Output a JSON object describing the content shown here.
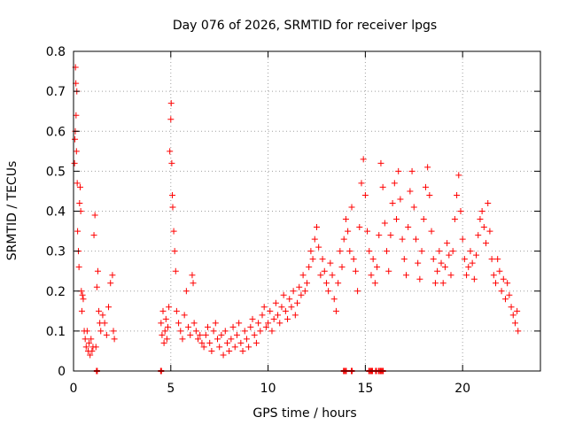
{
  "chart_data": {
    "type": "scatter",
    "title": "Day 076 of 2026, SRMTID for receiver lpgs",
    "xlabel": "GPS time / hours",
    "ylabel": "SRMTID / TECUs",
    "xlim": [
      0,
      24
    ],
    "ylim": [
      0,
      0.8
    ],
    "xticks": [
      0,
      5,
      10,
      15,
      20
    ],
    "yticks": [
      0,
      0.1,
      0.2,
      0.3,
      0.4,
      0.5,
      0.6,
      0.7,
      0.8
    ],
    "xtick_labels": [
      "0",
      "5",
      "10",
      "15",
      "20"
    ],
    "ytick_labels": [
      "0",
      "0.1",
      "0.2",
      "0.3",
      "0.4",
      "0.5",
      "0.6",
      "0.7",
      "0.8"
    ],
    "grid": true,
    "marker": "plus",
    "color": "#ff0000",
    "series": [
      {
        "name": "SRMTID",
        "points": [
          [
            0.05,
            0.52
          ],
          [
            0.07,
            0.58
          ],
          [
            0.09,
            0.6
          ],
          [
            0.1,
            0.76
          ],
          [
            0.12,
            0.72
          ],
          [
            0.13,
            0.64
          ],
          [
            0.15,
            0.55
          ],
          [
            0.17,
            0.7
          ],
          [
            0.19,
            0.47
          ],
          [
            0.21,
            0.35
          ],
          [
            0.25,
            0.3
          ],
          [
            0.28,
            0.26
          ],
          [
            0.31,
            0.42
          ],
          [
            0.34,
            0.46
          ],
          [
            0.37,
            0.4
          ],
          [
            0.4,
            0.2
          ],
          [
            0.43,
            0.15
          ],
          [
            0.46,
            0.19
          ],
          [
            0.5,
            0.18
          ],
          [
            0.55,
            0.1
          ],
          [
            0.6,
            0.08
          ],
          [
            0.65,
            0.06
          ],
          [
            0.7,
            0.1
          ],
          [
            0.75,
            0.05
          ],
          [
            0.8,
            0.07
          ],
          [
            0.85,
            0.04
          ],
          [
            0.9,
            0.08
          ],
          [
            0.95,
            0.05
          ],
          [
            1.0,
            0.06
          ],
          [
            1.05,
            0.34
          ],
          [
            1.1,
            0.39
          ],
          [
            1.15,
            0.06
          ],
          [
            1.2,
            0.21
          ],
          [
            1.25,
            0.25
          ],
          [
            1.3,
            0.15
          ],
          [
            1.35,
            0.12
          ],
          [
            1.4,
            0.1
          ],
          [
            1.5,
            0.14
          ],
          [
            1.6,
            0.12
          ],
          [
            1.7,
            0.09
          ],
          [
            1.8,
            0.16
          ],
          [
            1.9,
            0.22
          ],
          [
            2.0,
            0.24
          ],
          [
            2.05,
            0.1
          ],
          [
            2.1,
            0.08
          ],
          [
            4.5,
            0.12
          ],
          [
            4.55,
            0.09
          ],
          [
            4.6,
            0.15
          ],
          [
            4.65,
            0.07
          ],
          [
            4.7,
            0.1
          ],
          [
            4.75,
            0.13
          ],
          [
            4.8,
            0.08
          ],
          [
            4.85,
            0.11
          ],
          [
            4.9,
            0.16
          ],
          [
            4.95,
            0.55
          ],
          [
            5.0,
            0.63
          ],
          [
            5.02,
            0.67
          ],
          [
            5.05,
            0.52
          ],
          [
            5.08,
            0.44
          ],
          [
            5.1,
            0.41
          ],
          [
            5.15,
            0.35
          ],
          [
            5.2,
            0.3
          ],
          [
            5.25,
            0.25
          ],
          [
            5.3,
            0.15
          ],
          [
            5.4,
            0.12
          ],
          [
            5.5,
            0.1
          ],
          [
            5.6,
            0.08
          ],
          [
            5.7,
            0.14
          ],
          [
            5.8,
            0.2
          ],
          [
            5.9,
            0.11
          ],
          [
            6.0,
            0.09
          ],
          [
            6.1,
            0.24
          ],
          [
            6.15,
            0.22
          ],
          [
            6.2,
            0.12
          ],
          [
            6.3,
            0.1
          ],
          [
            6.4,
            0.08
          ],
          [
            6.5,
            0.09
          ],
          [
            6.6,
            0.07
          ],
          [
            6.7,
            0.06
          ],
          [
            6.8,
            0.09
          ],
          [
            6.9,
            0.11
          ],
          [
            7.0,
            0.07
          ],
          [
            7.1,
            0.05
          ],
          [
            7.2,
            0.1
          ],
          [
            7.3,
            0.12
          ],
          [
            7.4,
            0.08
          ],
          [
            7.5,
            0.06
          ],
          [
            7.6,
            0.09
          ],
          [
            7.7,
            0.04
          ],
          [
            7.8,
            0.1
          ],
          [
            7.9,
            0.07
          ],
          [
            8.0,
            0.05
          ],
          [
            8.1,
            0.08
          ],
          [
            8.2,
            0.11
          ],
          [
            8.3,
            0.06
          ],
          [
            8.4,
            0.09
          ],
          [
            8.5,
            0.12
          ],
          [
            8.6,
            0.07
          ],
          [
            8.7,
            0.05
          ],
          [
            8.8,
            0.1
          ],
          [
            8.9,
            0.08
          ],
          [
            9.0,
            0.06
          ],
          [
            9.1,
            0.11
          ],
          [
            9.2,
            0.13
          ],
          [
            9.3,
            0.09
          ],
          [
            9.4,
            0.07
          ],
          [
            9.5,
            0.12
          ],
          [
            9.6,
            0.1
          ],
          [
            9.7,
            0.14
          ],
          [
            9.8,
            0.16
          ],
          [
            9.9,
            0.11
          ],
          [
            10.0,
            0.12
          ],
          [
            10.1,
            0.15
          ],
          [
            10.2,
            0.1
          ],
          [
            10.3,
            0.13
          ],
          [
            10.4,
            0.17
          ],
          [
            10.5,
            0.14
          ],
          [
            10.6,
            0.12
          ],
          [
            10.7,
            0.16
          ],
          [
            10.8,
            0.19
          ],
          [
            10.9,
            0.15
          ],
          [
            11.0,
            0.13
          ],
          [
            11.1,
            0.18
          ],
          [
            11.2,
            0.16
          ],
          [
            11.3,
            0.2
          ],
          [
            11.4,
            0.14
          ],
          [
            11.5,
            0.17
          ],
          [
            11.6,
            0.21
          ],
          [
            11.7,
            0.19
          ],
          [
            11.8,
            0.24
          ],
          [
            11.9,
            0.2
          ],
          [
            12.0,
            0.22
          ],
          [
            12.1,
            0.26
          ],
          [
            12.2,
            0.3
          ],
          [
            12.3,
            0.28
          ],
          [
            12.4,
            0.33
          ],
          [
            12.5,
            0.36
          ],
          [
            12.6,
            0.31
          ],
          [
            12.7,
            0.24
          ],
          [
            12.8,
            0.28
          ],
          [
            12.9,
            0.25
          ],
          [
            13.0,
            0.22
          ],
          [
            13.1,
            0.2
          ],
          [
            13.2,
            0.27
          ],
          [
            13.3,
            0.24
          ],
          [
            13.4,
            0.18
          ],
          [
            13.5,
            0.15
          ],
          [
            13.6,
            0.22
          ],
          [
            13.7,
            0.3
          ],
          [
            13.8,
            0.26
          ],
          [
            13.9,
            0.33
          ],
          [
            14.0,
            0.38
          ],
          [
            14.1,
            0.35
          ],
          [
            14.2,
            0.3
          ],
          [
            14.3,
            0.41
          ],
          [
            14.4,
            0.28
          ],
          [
            14.5,
            0.25
          ],
          [
            14.6,
            0.2
          ],
          [
            14.7,
            0.36
          ],
          [
            14.8,
            0.47
          ],
          [
            14.9,
            0.53
          ],
          [
            15.0,
            0.44
          ],
          [
            15.1,
            0.35
          ],
          [
            15.2,
            0.3
          ],
          [
            15.3,
            0.24
          ],
          [
            15.4,
            0.28
          ],
          [
            15.5,
            0.22
          ],
          [
            15.6,
            0.26
          ],
          [
            15.7,
            0.34
          ],
          [
            15.8,
            0.52
          ],
          [
            15.9,
            0.46
          ],
          [
            16.0,
            0.37
          ],
          [
            16.1,
            0.3
          ],
          [
            16.2,
            0.25
          ],
          [
            16.3,
            0.34
          ],
          [
            16.4,
            0.42
          ],
          [
            16.5,
            0.47
          ],
          [
            16.6,
            0.38
          ],
          [
            16.7,
            0.5
          ],
          [
            16.8,
            0.43
          ],
          [
            16.9,
            0.33
          ],
          [
            17.0,
            0.28
          ],
          [
            17.1,
            0.24
          ],
          [
            17.2,
            0.36
          ],
          [
            17.3,
            0.45
          ],
          [
            17.4,
            0.5
          ],
          [
            17.5,
            0.41
          ],
          [
            17.6,
            0.33
          ],
          [
            17.7,
            0.27
          ],
          [
            17.8,
            0.23
          ],
          [
            17.9,
            0.3
          ],
          [
            18.0,
            0.38
          ],
          [
            18.1,
            0.46
          ],
          [
            18.2,
            0.51
          ],
          [
            18.3,
            0.44
          ],
          [
            18.4,
            0.35
          ],
          [
            18.5,
            0.28
          ],
          [
            18.6,
            0.22
          ],
          [
            18.7,
            0.25
          ],
          [
            18.8,
            0.3
          ],
          [
            18.9,
            0.27
          ],
          [
            19.0,
            0.22
          ],
          [
            19.1,
            0.26
          ],
          [
            19.2,
            0.32
          ],
          [
            19.3,
            0.29
          ],
          [
            19.4,
            0.24
          ],
          [
            19.5,
            0.3
          ],
          [
            19.6,
            0.38
          ],
          [
            19.7,
            0.44
          ],
          [
            19.8,
            0.49
          ],
          [
            19.9,
            0.4
          ],
          [
            20.0,
            0.33
          ],
          [
            20.1,
            0.28
          ],
          [
            20.2,
            0.24
          ],
          [
            20.3,
            0.26
          ],
          [
            20.4,
            0.3
          ],
          [
            20.5,
            0.27
          ],
          [
            20.6,
            0.23
          ],
          [
            20.7,
            0.29
          ],
          [
            20.8,
            0.34
          ],
          [
            20.9,
            0.38
          ],
          [
            21.0,
            0.4
          ],
          [
            21.1,
            0.36
          ],
          [
            21.2,
            0.32
          ],
          [
            21.3,
            0.42
          ],
          [
            21.4,
            0.35
          ],
          [
            21.5,
            0.28
          ],
          [
            21.6,
            0.24
          ],
          [
            21.7,
            0.22
          ],
          [
            21.8,
            0.28
          ],
          [
            21.9,
            0.25
          ],
          [
            22.0,
            0.2
          ],
          [
            22.1,
            0.23
          ],
          [
            22.2,
            0.18
          ],
          [
            22.3,
            0.22
          ],
          [
            22.4,
            0.19
          ],
          [
            22.5,
            0.16
          ],
          [
            22.6,
            0.14
          ],
          [
            22.7,
            0.12
          ],
          [
            22.8,
            0.15
          ],
          [
            22.85,
            0.1
          ]
        ],
        "zero_points": [
          1.2,
          4.5,
          13.9,
          14.0,
          14.3,
          15.2,
          15.3,
          15.35,
          15.55,
          15.7,
          15.8,
          15.9
        ]
      }
    ]
  }
}
